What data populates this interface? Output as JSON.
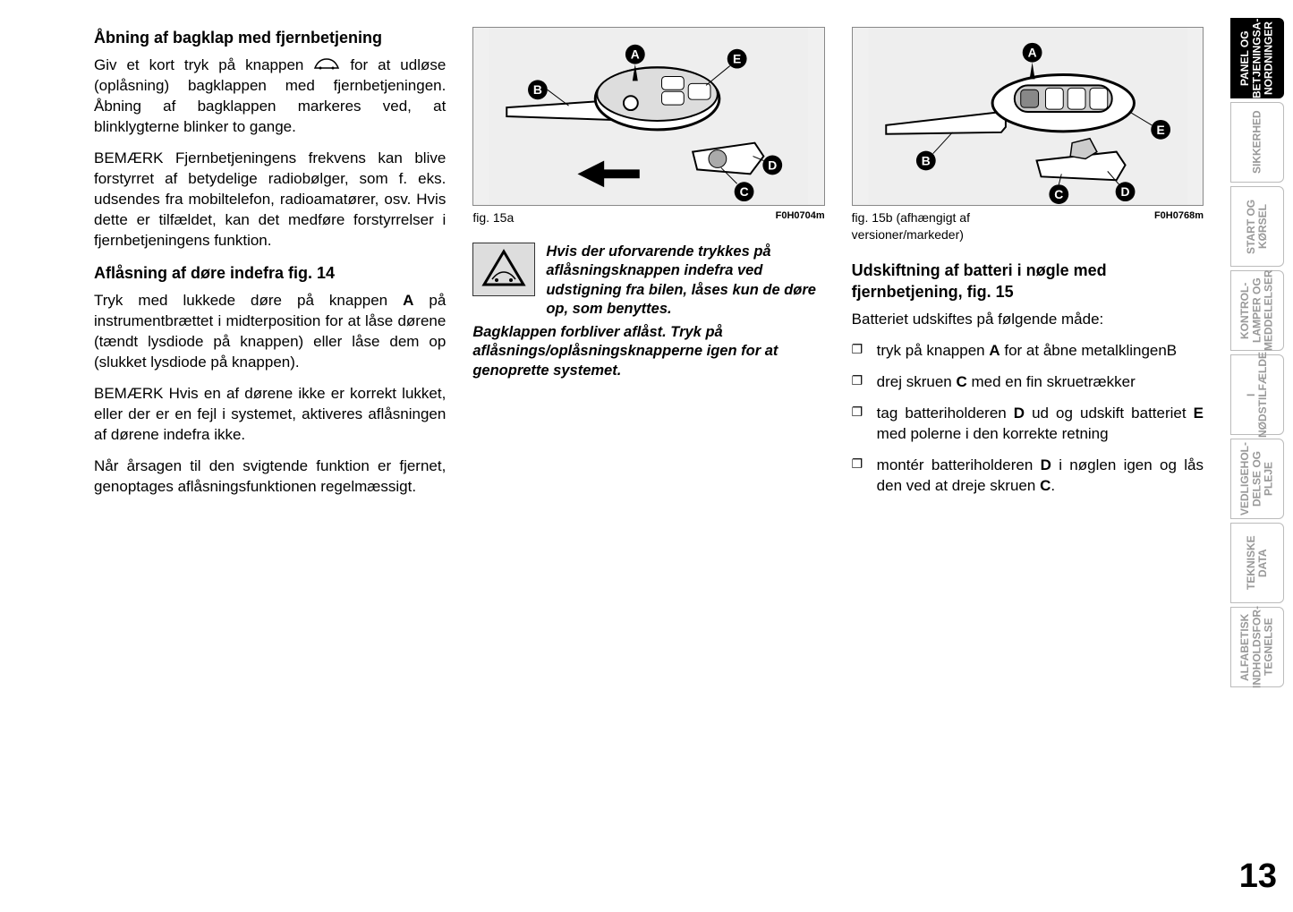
{
  "col1": {
    "h1": "Åbning af bagklap med fjernbetjening",
    "p1a": "Giv et kort tryk på knappen ",
    "p1b": " for at udløse (oplåsning) bagklappen med fjernbetjeningen. Åbning af bagklappen markeres ved, at blinklygterne blinker to gange.",
    "p2": "BEMÆRK Fjernbetjeningens frekvens kan blive forstyrret af betydelige radiobølger, som f. eks. udsendes fra mobiltelefon, radioamatører, osv. Hvis dette er tilfældet, kan det medføre forstyrrelser i fjernbetjeningens funktion.",
    "h2": "Aflåsning af døre indefra fig. 14",
    "p3": "Tryk med lukkede døre på knappen A på instrumentbrættet i midterposition for at låse dørene (tændt lysdiode på knappen) eller låse dem op (slukket lysdiode på knappen).",
    "p4": "BEMÆRK Hvis en af dørene ikke er korrekt lukket, eller der er en fejl i systemet, aktiveres aflåsningen af dørene indefra ikke.",
    "p5": "Når årsagen til den svigtende funktion er fjernet, genoptages aflåsningsfunktionen regelmæssigt."
  },
  "col2": {
    "fig_label": "fig. 15a",
    "fig_code": "F0H0704m",
    "warn1": "Hvis der uforvarende trykkes på aflåsningsknappen indefra ved udstigning fra bilen, låses kun de døre op, som benyttes.",
    "warn2": "Bagklappen forbliver aflåst. Tryk på aflåsnings/oplåsningsknapperne igen for at genoprette systemet."
  },
  "col3": {
    "fig_label": "fig. 15b (afhængigt af versioner/markeder)",
    "fig_code": "F0H0768m",
    "h1": "Udskiftning af batteri i nøgle med fjernbetjening, fig. 15",
    "p1": "Batteriet udskiftes på følgende måde:",
    "li1": "tryk på knappen A for at åbne metalklingenB",
    "li2": "drej skruen C med en fin skruetrækker",
    "li3": "tag batteriholderen D ud og udskift batteriet E med polerne i den korrekte retning",
    "li4": "montér batteriholderen D i nøglen igen og lås den ved at dreje skruen C."
  },
  "tabs": [
    {
      "label": "PANEL OG BETJENINGSA- NORDNINGER",
      "active": true
    },
    {
      "label": "SIKKERHED",
      "active": false
    },
    {
      "label": "START OG KØRSEL",
      "active": false
    },
    {
      "label": "KONTROL- LAMPER OG MEDDELELSER",
      "active": false
    },
    {
      "label": "I NØDSTILFÆLDE",
      "active": false
    },
    {
      "label": "VEDLIGEHOL- DELSE OG PLEJE",
      "active": false
    },
    {
      "label": "TEKNISKE DATA",
      "active": false
    },
    {
      "label": "ALFABETISK INDHOLDSFOR- TEGNELSE",
      "active": false
    }
  ],
  "pagenum": "13",
  "fig_labels": {
    "A": "A",
    "B": "B",
    "C": "C",
    "D": "D",
    "E": "E"
  }
}
